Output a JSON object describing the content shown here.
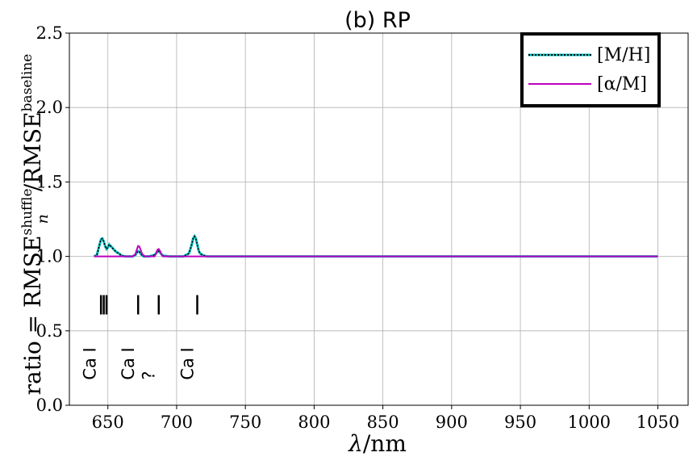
{
  "chart_data": {
    "type": "line",
    "title": "(b) RP",
    "xlabel": "λ/nm",
    "ylabel": "ratio = RMSE_n^shuffle/RMSE^baseline",
    "ylabel_parts": {
      "prefix": "ratio = RMSE",
      "sup1": "shuffle",
      "sub1": "n",
      "mid": "/RMSE",
      "sup2": "baseline"
    },
    "xlim": [
      622,
      1072
    ],
    "ylim": [
      0.0,
      2.5
    ],
    "xticks": [
      650,
      700,
      750,
      800,
      850,
      900,
      950,
      1000,
      1050
    ],
    "yticks": [
      0.0,
      0.5,
      1.0,
      1.5,
      2.0,
      2.5
    ],
    "grid": true,
    "legend_position": "top-right",
    "series": [
      {
        "name": "[M/H]",
        "color": "#00bfbf",
        "style": "dotted-over-cyan",
        "x": [
          640,
          642,
          644,
          645,
          646,
          647,
          648,
          649,
          650,
          651,
          652,
          653,
          654,
          655,
          656,
          657,
          658,
          659,
          660,
          663,
          666,
          668,
          670,
          671,
          672,
          673,
          674,
          676,
          680,
          684,
          686,
          687,
          688,
          690,
          695,
          700,
          705,
          709,
          711,
          712,
          713,
          714,
          715,
          716,
          717,
          719,
          722,
          730,
          760,
          800,
          850,
          900,
          950,
          1000,
          1050
        ],
        "y": [
          1.0,
          1.01,
          1.08,
          1.115,
          1.12,
          1.1,
          1.07,
          1.05,
          1.06,
          1.08,
          1.07,
          1.06,
          1.05,
          1.04,
          1.03,
          1.025,
          1.02,
          1.012,
          1.005,
          1.0,
          1.0,
          1.0,
          1.01,
          1.025,
          1.035,
          1.03,
          1.015,
          1.0,
          1.0,
          1.01,
          1.03,
          1.035,
          1.025,
          1.005,
          1.0,
          1.0,
          1.0,
          1.02,
          1.08,
          1.12,
          1.135,
          1.12,
          1.08,
          1.04,
          1.02,
          1.008,
          1.0,
          1.0,
          1.0,
          1.0,
          1.0,
          1.0,
          1.0,
          1.0,
          1.0
        ]
      },
      {
        "name": "[α/M]",
        "color": "#bf00bf",
        "style": "solid",
        "x": [
          640,
          645,
          650,
          655,
          660,
          665,
          668,
          670,
          671,
          672,
          673,
          674,
          675,
          677,
          680,
          684,
          685,
          686,
          687,
          688,
          689,
          690,
          695,
          700,
          750,
          800,
          850,
          900,
          950,
          1000,
          1050
        ],
        "y": [
          1.0,
          1.0,
          1.0,
          1.0,
          1.0,
          1.0,
          1.0,
          1.015,
          1.045,
          1.07,
          1.065,
          1.04,
          1.015,
          1.0,
          1.0,
          1.0,
          1.02,
          1.045,
          1.05,
          1.035,
          1.012,
          1.0,
          1.0,
          1.0,
          1.0,
          1.0,
          1.0,
          1.0,
          1.0,
          1.0,
          1.0
        ]
      }
    ],
    "line_markers": {
      "positions": [
        645,
        647,
        649,
        672,
        687,
        715
      ],
      "y_range": [
        0.61,
        0.74
      ],
      "color": "#000000"
    },
    "line_labels": [
      {
        "text": "Ca I",
        "x": 641,
        "y": 0.17
      },
      {
        "text": "Ca I",
        "x": 669,
        "y": 0.17
      },
      {
        "text": "?",
        "x": 684,
        "y": 0.17
      },
      {
        "text": "Ca I",
        "x": 712,
        "y": 0.17
      }
    ]
  }
}
